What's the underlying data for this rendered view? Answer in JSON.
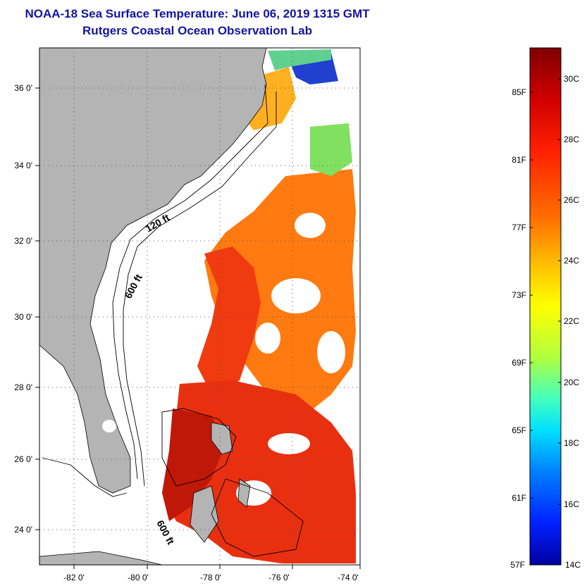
{
  "title": "NOAA-18 Sea Surface Temperature:  June 06, 2019 1315 GMT",
  "subtitle": "Rutgers Coastal Ocean Observation Lab",
  "map": {
    "lon_ticks": [
      "-82 0'",
      "-80 0'",
      "-78 0'",
      "-76 0'",
      "-74 0'"
    ],
    "lat_ticks": [
      "36 0'",
      "34 0'",
      "32 0'",
      "30 0'",
      "28 0'",
      "26 0'",
      "24 0'"
    ],
    "contour_labels": [
      "120 ft",
      "600 ft",
      "600 ft"
    ],
    "land_color": "#b4b4b4",
    "cloud_color": "#ffffff"
  },
  "colorbar": {
    "celsius_ticks": [
      "30C",
      "28C",
      "26C",
      "24C",
      "22C",
      "20C",
      "18C",
      "16C",
      "14C"
    ],
    "fahrenheit_ticks": [
      "85F",
      "81F",
      "77F",
      "73F",
      "69F",
      "65F",
      "61F",
      "57F"
    ],
    "colors": [
      "#800000",
      "#d00000",
      "#ff2000",
      "#ff7000",
      "#ffc000",
      "#ffff00",
      "#b0ff40",
      "#40ffc0",
      "#00e0ff",
      "#0080ff",
      "#0020ff",
      "#0000a0"
    ]
  }
}
